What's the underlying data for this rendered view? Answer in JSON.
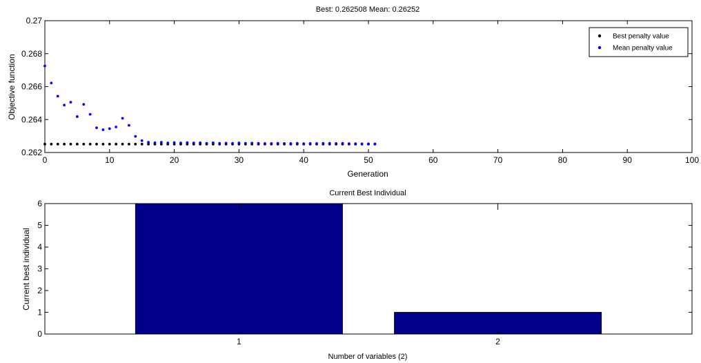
{
  "chart_data": [
    {
      "type": "scatter",
      "title": "Best: 0.262508 Mean: 0.26252",
      "xlabel": "Generation",
      "ylabel": "Objective function",
      "xlim": [
        0,
        100
      ],
      "ylim": [
        0.262,
        0.27
      ],
      "x_ticks": [
        0,
        10,
        20,
        30,
        40,
        50,
        60,
        70,
        80,
        90,
        100
      ],
      "y_ticks": [
        0.262,
        0.264,
        0.266,
        0.268,
        0.27
      ],
      "legend_position": "top-right",
      "series": [
        {
          "name": "Best penalty value",
          "color": "#000000",
          "x": [
            0,
            1,
            2,
            3,
            4,
            5,
            6,
            7,
            8,
            9,
            10,
            11,
            12,
            13,
            14,
            15,
            16,
            17,
            18,
            19,
            20,
            21,
            22,
            23,
            24,
            25,
            26,
            27,
            28,
            29,
            30,
            31,
            32,
            33,
            34,
            35,
            36,
            37,
            38,
            39,
            40,
            41,
            42,
            43,
            44,
            45,
            46,
            47,
            48,
            49,
            50,
            51
          ],
          "y": [
            0.26251,
            0.26251,
            0.26251,
            0.26251,
            0.26251,
            0.26251,
            0.26251,
            0.26251,
            0.26251,
            0.26251,
            0.26251,
            0.26251,
            0.26251,
            0.26251,
            0.26251,
            0.26251,
            0.26251,
            0.26251,
            0.26251,
            0.26251,
            0.26251,
            0.26251,
            0.26251,
            0.26251,
            0.26251,
            0.26251,
            0.26251,
            0.26251,
            0.26251,
            0.26251,
            0.26251,
            0.26251,
            0.26251,
            0.26251,
            0.26251,
            0.26251,
            0.26251,
            0.26251,
            0.26251,
            0.26251,
            0.26251,
            0.26251,
            0.26251,
            0.26251,
            0.26251,
            0.26251,
            0.26251,
            0.26251,
            0.26251,
            0.26251,
            0.26251,
            0.26251
          ]
        },
        {
          "name": "Mean penalty value",
          "color": "#0000ff",
          "x": [
            0,
            1,
            2,
            3,
            4,
            5,
            6,
            7,
            8,
            9,
            10,
            11,
            12,
            13,
            14,
            15,
            16,
            17,
            18,
            19,
            20,
            21,
            22,
            23,
            24,
            25,
            26,
            27,
            28,
            29,
            30,
            31,
            32,
            33,
            34,
            35,
            36,
            37,
            38,
            39,
            40,
            41,
            42,
            43,
            44,
            45,
            46,
            47,
            48,
            49,
            50,
            51
          ],
          "y": [
            0.26725,
            0.26622,
            0.26542,
            0.26488,
            0.26505,
            0.26418,
            0.26492,
            0.26432,
            0.2635,
            0.26338,
            0.26345,
            0.26355,
            0.26408,
            0.26365,
            0.26298,
            0.26272,
            0.26262,
            0.26259,
            0.26262,
            0.26258,
            0.2626,
            0.26258,
            0.2626,
            0.26258,
            0.26259,
            0.26256,
            0.26259,
            0.26256,
            0.26257,
            0.26256,
            0.26258,
            0.26256,
            0.26257,
            0.26256,
            0.26255,
            0.26255,
            0.26256,
            0.26255,
            0.26255,
            0.26256,
            0.26254,
            0.26255,
            0.26255,
            0.26256,
            0.26256,
            0.26255,
            0.26256,
            0.26254,
            0.26254,
            0.26253,
            0.26253,
            0.26252
          ]
        }
      ]
    },
    {
      "type": "bar",
      "title": "Current Best Individual",
      "xlabel": "Number of variables (2)",
      "ylabel": "Current best individual",
      "categories": [
        "1",
        "2"
      ],
      "values": [
        6,
        1
      ],
      "bar_color": "#00008b",
      "ylim": [
        0,
        6
      ],
      "y_ticks": [
        0,
        1,
        2,
        3,
        4,
        5,
        6
      ]
    }
  ]
}
